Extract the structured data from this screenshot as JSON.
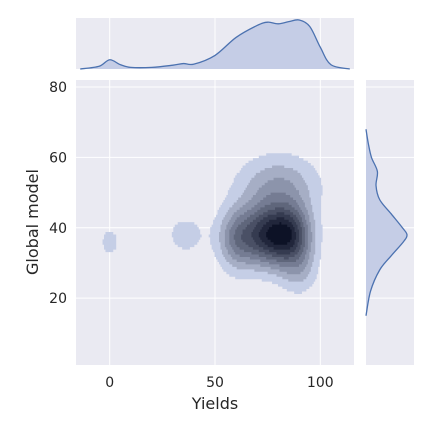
{
  "chart_data": {
    "type": "jointplot-kde",
    "xlabel": "Yields",
    "ylabel": "Global model",
    "xlim": [
      -16,
      116
    ],
    "ylim": [
      1,
      82
    ],
    "xticks": [
      0,
      50,
      100
    ],
    "xtick_labels": [
      "0",
      "50",
      "100"
    ],
    "yticks": [
      20,
      40,
      60,
      80
    ],
    "ytick_labels": [
      "20",
      "40",
      "60",
      "80"
    ],
    "grid": true,
    "colors": {
      "panel_bg": "#eaeaf2",
      "grid": "#ffffff",
      "contour_light": "#c5cee6",
      "contour_dark": "#0d1226",
      "marginal_line": "#4c72b0",
      "marginal_fill": "#c5cde6"
    },
    "joint_density_components": [
      {
        "x": 0,
        "y": 36,
        "sx": 3.2,
        "sy": 3.0,
        "w": 0.06
      },
      {
        "x": 36,
        "y": 38,
        "sx": 8,
        "sy": 5,
        "w": 0.05
      },
      {
        "x": 60,
        "y": 37,
        "sx": 6,
        "sy": 6,
        "w": 0.16
      },
      {
        "x": 74,
        "y": 38,
        "sx": 8,
        "sy": 6,
        "w": 0.3
      },
      {
        "x": 86,
        "y": 38,
        "sx": 7,
        "sy": 6,
        "w": 0.28
      },
      {
        "x": 80,
        "y": 52,
        "sx": 13,
        "sy": 6,
        "w": 0.12
      },
      {
        "x": 90,
        "y": 28,
        "sx": 6,
        "sy": 5,
        "w": 0.07
      }
    ],
    "contour_levels": 9,
    "x_marginal": {
      "x": [
        -14,
        -5,
        0,
        5,
        10,
        20,
        30,
        35,
        40,
        50,
        60,
        70,
        75,
        80,
        85,
        90,
        95,
        100,
        105,
        114
      ],
      "density": [
        0.0,
        0.05,
        0.17,
        0.08,
        0.03,
        0.03,
        0.07,
        0.1,
        0.09,
        0.25,
        0.58,
        0.8,
        0.86,
        0.83,
        0.87,
        0.9,
        0.78,
        0.4,
        0.08,
        0.0
      ]
    },
    "y_marginal": {
      "y": [
        15,
        22,
        28,
        32,
        36,
        38,
        40,
        44,
        48,
        52,
        56,
        60,
        64,
        68
      ],
      "density": [
        0.0,
        0.1,
        0.3,
        0.55,
        0.82,
        0.9,
        0.8,
        0.55,
        0.3,
        0.22,
        0.25,
        0.12,
        0.05,
        0.0
      ]
    }
  }
}
